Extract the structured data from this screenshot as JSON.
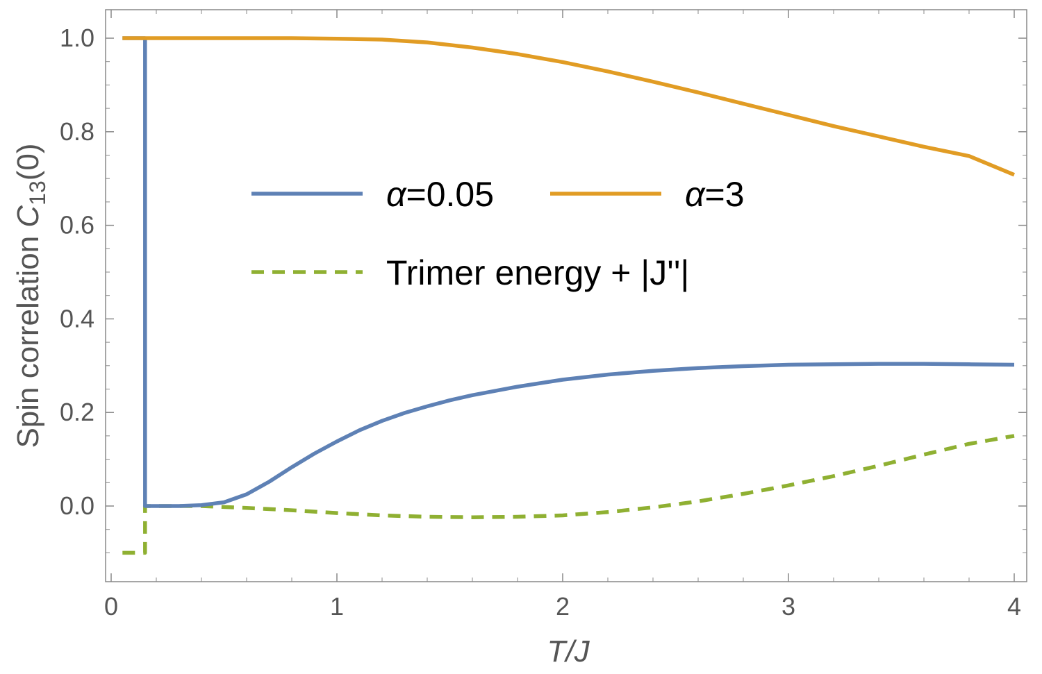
{
  "chart_data": {
    "type": "line",
    "xlabel": {
      "var": "T",
      "sep": "/",
      "unit": "J"
    },
    "ylabel": {
      "text": "Spin correlation ",
      "symbol": "C",
      "subscript": "13",
      "suffix": "(0)"
    },
    "xlim": [
      0,
      4
    ],
    "ylim": [
      -0.15,
      1.06
    ],
    "xticks": [
      0,
      1,
      2,
      3,
      4
    ],
    "xtick_labels": [
      "0",
      "1",
      "2",
      "3",
      "4"
    ],
    "yticks": [
      0.0,
      0.2,
      0.4,
      0.6,
      0.8,
      1.0
    ],
    "ytick_labels": [
      "0.0",
      "0.2",
      "0.4",
      "0.6",
      "0.8",
      "1.0"
    ],
    "grid": false,
    "frame": true,
    "legend_position": "center",
    "series": [
      {
        "name": "α=0.05",
        "legend_symbol": "α",
        "legend_text": "=0.05",
        "color": "#5e81b5",
        "style": "solid",
        "x": [
          0.05,
          0.15,
          0.15,
          0.2,
          0.3,
          0.4,
          0.5,
          0.6,
          0.7,
          0.8,
          0.9,
          1.0,
          1.1,
          1.2,
          1.3,
          1.4,
          1.5,
          1.6,
          1.8,
          2.0,
          2.2,
          2.4,
          2.6,
          2.8,
          3.0,
          3.2,
          3.4,
          3.6,
          3.8,
          4.0
        ],
        "y": [
          1.0,
          1.0,
          0.0,
          0.0,
          0.0,
          0.002,
          0.008,
          0.025,
          0.052,
          0.083,
          0.112,
          0.138,
          0.162,
          0.182,
          0.199,
          0.213,
          0.226,
          0.237,
          0.255,
          0.27,
          0.281,
          0.289,
          0.295,
          0.299,
          0.302,
          0.303,
          0.304,
          0.304,
          0.303,
          0.302
        ]
      },
      {
        "name": "α=3",
        "legend_symbol": "α",
        "legend_text": "=3",
        "color": "#e19c24",
        "style": "solid",
        "x": [
          0.05,
          0.2,
          0.4,
          0.6,
          0.8,
          1.0,
          1.2,
          1.4,
          1.6,
          1.8,
          2.0,
          2.2,
          2.4,
          2.6,
          2.8,
          3.0,
          3.2,
          3.4,
          3.6,
          3.8,
          4.0
        ],
        "y": [
          1.0,
          1.0,
          1.0,
          1.0,
          1.0,
          0.999,
          0.997,
          0.991,
          0.98,
          0.966,
          0.949,
          0.929,
          0.907,
          0.884,
          0.86,
          0.836,
          0.812,
          0.79,
          0.768,
          0.748,
          0.708
        ]
      },
      {
        "name": "Trimer energy + |J''|",
        "legend_text": "Trimer energy + |J''|",
        "color": "#8fb032",
        "style": "dashed",
        "x": [
          0.05,
          0.15,
          0.15,
          0.2,
          0.4,
          0.6,
          0.8,
          1.0,
          1.2,
          1.4,
          1.6,
          1.8,
          2.0,
          2.2,
          2.4,
          2.6,
          2.8,
          3.0,
          3.2,
          3.4,
          3.6,
          3.8,
          4.0
        ],
        "y": [
          -0.1,
          -0.1,
          0.0,
          0.0,
          0.0,
          -0.004,
          -0.009,
          -0.015,
          -0.02,
          -0.023,
          -0.024,
          -0.023,
          -0.02,
          -0.013,
          -0.003,
          0.01,
          0.026,
          0.044,
          0.064,
          0.086,
          0.11,
          0.133,
          0.15
        ]
      }
    ]
  }
}
